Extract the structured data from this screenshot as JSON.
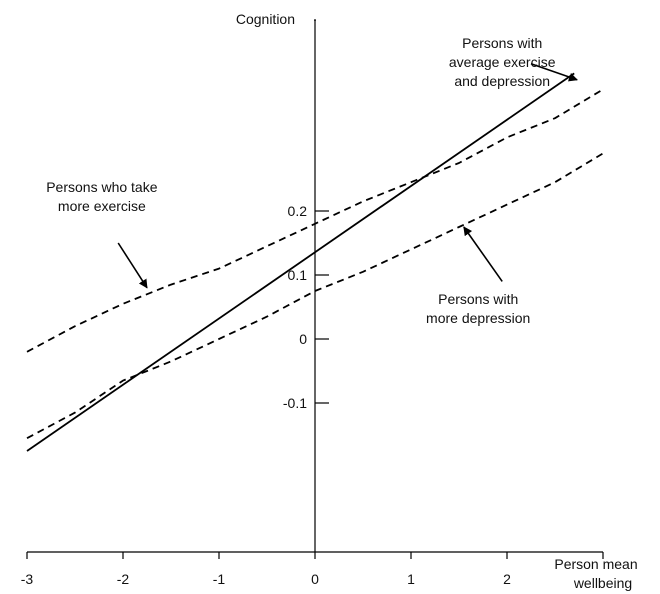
{
  "chart_data": {
    "type": "line",
    "title": "",
    "ylabel": "Cognition",
    "xlabel_lines": [
      "Person mean",
      "wellbeing"
    ],
    "xlim": [
      -3,
      3
    ],
    "ylim": [
      -0.35,
      0.5
    ],
    "x_ticks": [
      -3,
      -2,
      -1,
      0,
      1,
      2
    ],
    "y_ticks": [
      -0.1,
      0,
      0.1,
      0.2
    ],
    "y_tick_labels": [
      "-0.1",
      "0",
      "0.1",
      "0.2"
    ],
    "grid": false,
    "legend": "none",
    "series": [
      {
        "style": "solid",
        "color": "#000000",
        "x": [
          -3,
          2.7
        ],
        "y": [
          -0.175,
          0.415
        ]
      },
      {
        "style": "dashed",
        "color": "#000000",
        "x": [
          -3,
          -2.5,
          -2,
          -1.5,
          -1,
          -0.5,
          0,
          0.5,
          1,
          1.5,
          2,
          2.5,
          3
        ],
        "y": [
          -0.02,
          0.02,
          0.055,
          0.085,
          0.11,
          0.145,
          0.18,
          0.215,
          0.245,
          0.275,
          0.315,
          0.345,
          0.39
        ]
      },
      {
        "style": "dashed",
        "color": "#000000",
        "x": [
          -3,
          -2.5,
          -2,
          -1.5,
          -1,
          -0.5,
          0,
          0.5,
          1,
          1.5,
          2,
          2.5,
          3
        ],
        "y": [
          -0.155,
          -0.115,
          -0.065,
          -0.035,
          0.0,
          0.035,
          0.075,
          0.105,
          0.14,
          0.175,
          0.21,
          0.245,
          0.29
        ]
      }
    ],
    "annotations": [
      {
        "name": "annotation-average",
        "lines": [
          "Persons with",
          "average exercise",
          "and depression"
        ],
        "label_x": 1.95,
        "label_y": 0.455,
        "anchor": "middle",
        "arrow_from": [
          2.25,
          0.43
        ],
        "arrow_to": [
          2.73,
          0.405
        ]
      },
      {
        "name": "annotation-exercise",
        "lines": [
          "Persons who take",
          "more exercise"
        ],
        "label_x": -2.22,
        "label_y": 0.23,
        "anchor": "middle",
        "arrow_from": [
          -2.05,
          0.15
        ],
        "arrow_to": [
          -1.75,
          0.08
        ]
      },
      {
        "name": "annotation-depression",
        "lines": [
          "Persons with",
          "more depression"
        ],
        "label_x": 1.7,
        "label_y": 0.055,
        "anchor": "middle",
        "arrow_from": [
          1.95,
          0.09
        ],
        "arrow_to": [
          1.55,
          0.175
        ]
      }
    ]
  }
}
